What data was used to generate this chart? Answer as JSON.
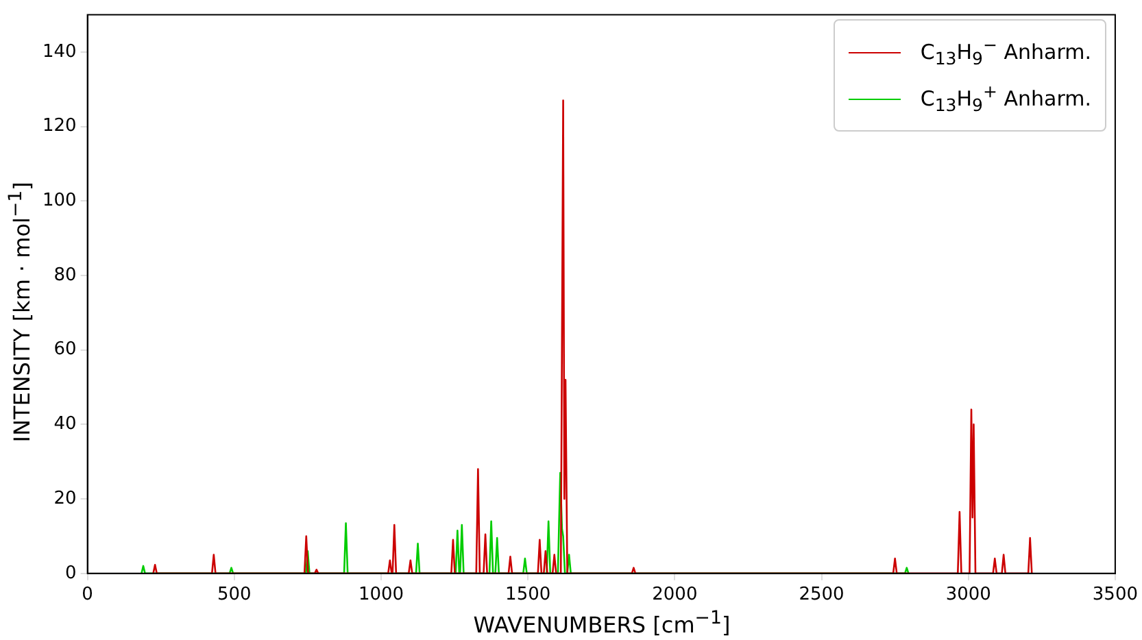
{
  "chart_data": {
    "type": "line",
    "xlabel": "WAVENUMBERS [cm$^{−1}$]",
    "ylabel": "INTENSITY [km · mol$^{−1}$]",
    "xlim": [
      0,
      3500
    ],
    "xticks": [
      0,
      500,
      1000,
      1500,
      2000,
      2500,
      3000,
      3500
    ],
    "ylim": [
      0,
      150
    ],
    "yticks": [
      0,
      20,
      40,
      60,
      80,
      100,
      120,
      140
    ],
    "grid": false,
    "legend": "top right",
    "marker": "none",
    "line_style": "solid",
    "series": [
      {
        "name": "C$_{13}$H$_{9}$$^{−}$ Anharm.",
        "color": "#cc0000",
        "x": [
          224,
          230,
          236,
          424,
          430,
          436,
          739,
          745,
          751,
          774,
          780,
          786,
          1024,
          1030,
          1036,
          1039,
          1045,
          1051,
          1094,
          1100,
          1106,
          1239,
          1245,
          1251,
          1324,
          1330,
          1336,
          1349,
          1355,
          1361,
          1434,
          1440,
          1446,
          1534,
          1540,
          1546,
          1554,
          1560,
          1566,
          1584,
          1590,
          1596,
          1612,
          1620,
          1624,
          1628,
          1634,
          1854,
          1860,
          1866,
          2744,
          2750,
          2756,
          2964,
          2970,
          2976,
          3004,
          3010,
          3014,
          3018,
          3024,
          3084,
          3090,
          3096,
          3114,
          3120,
          3126,
          3204,
          3210,
          3216
        ],
        "values": [
          0,
          2.3,
          0,
          0,
          5,
          0,
          0,
          10,
          0,
          0,
          1,
          0,
          0,
          3.5,
          0,
          0,
          13,
          0,
          0,
          3.5,
          0,
          0,
          9,
          0,
          0,
          28,
          0,
          0,
          10.5,
          0,
          0,
          4.5,
          0,
          0,
          9,
          0,
          0,
          6,
          0,
          0,
          5,
          0,
          0,
          127,
          20,
          52,
          0,
          0,
          1.5,
          0,
          0,
          4,
          0,
          0,
          16.5,
          0,
          0,
          44,
          15,
          40,
          0,
          0,
          4,
          0,
          0,
          5,
          0,
          0,
          9.5,
          0
        ]
      },
      {
        "name": "C$_{13}$H$_{9}$$^{+}$ Anharm.",
        "color": "#00cc00",
        "x": [
          184,
          190,
          196,
          484,
          490,
          496,
          744,
          750,
          756,
          874,
          880,
          886,
          1119,
          1125,
          1131,
          1254,
          1260,
          1266,
          1269,
          1275,
          1281,
          1369,
          1375,
          1381,
          1389,
          1395,
          1401,
          1484,
          1490,
          1496,
          1564,
          1570,
          1576,
          1602,
          1610,
          1616,
          1620,
          1626,
          1634,
          1640,
          1646,
          2784,
          2790,
          2796
        ],
        "values": [
          0,
          2,
          0,
          0,
          1.5,
          0,
          0,
          6,
          0,
          0,
          13.5,
          0,
          0,
          8,
          0,
          0,
          11.5,
          0,
          0,
          13,
          0,
          0,
          14,
          0,
          0,
          9.5,
          0,
          0,
          4,
          0,
          0,
          14,
          0,
          0,
          27,
          12,
          10,
          0,
          0,
          5,
          0,
          0,
          1.5,
          0
        ]
      }
    ]
  }
}
